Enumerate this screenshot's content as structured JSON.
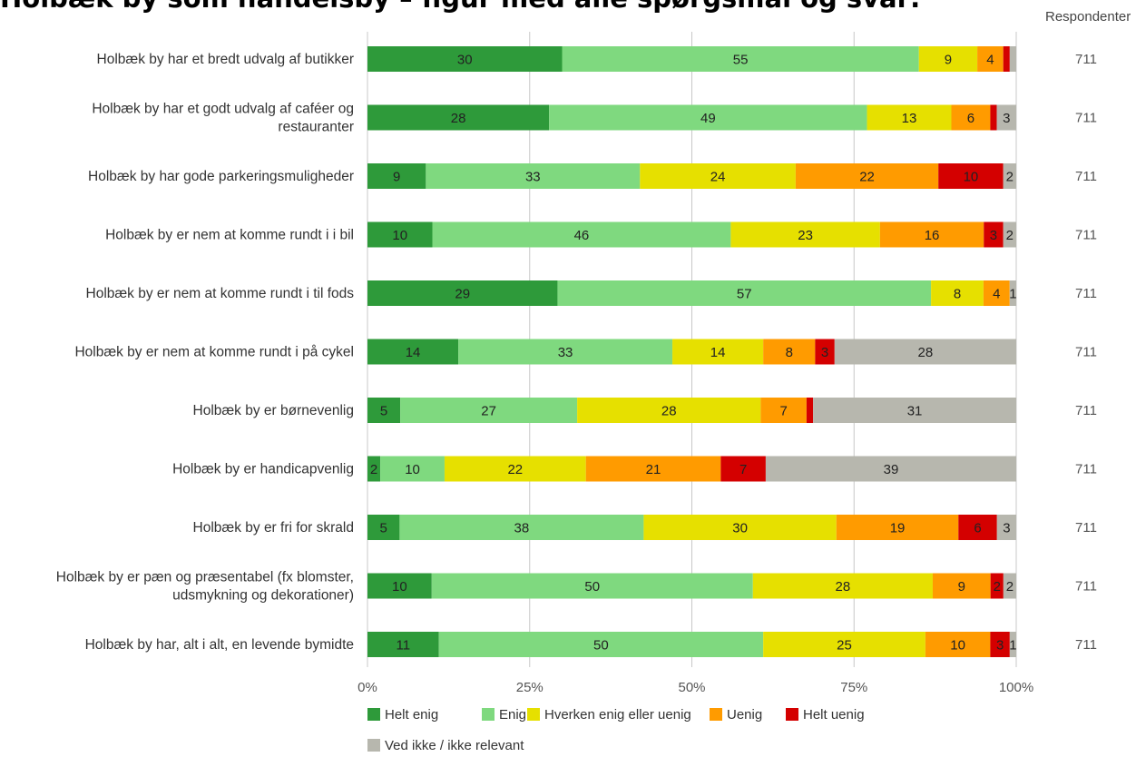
{
  "chart_data": {
    "type": "bar",
    "orientation": "horizontal-stacked-percent",
    "title": "Holbæk by som handelsby – figur med alle spørgsmål og svar:",
    "right_column_header": "Respondenter",
    "categories": [
      "Holbæk by har et bredt udvalg af butikker",
      "Holbæk by har et godt udvalg af caféer og restauranter",
      "Holbæk by har gode parkeringsmuligheder",
      "Holbæk by er nem at komme rundt i i bil",
      "Holbæk by er nem at komme rundt i til fods",
      "Holbæk by er nem at komme rundt i på cykel",
      "Holbæk by er børnevenlig",
      "Holbæk by er handicapvenlig",
      "Holbæk by er fri for skrald",
      "Holbæk by er pæn og præsentabel (fx blomster, udsmykning og dekorationer)",
      "Holbæk by har, alt i alt, en levende bymidte"
    ],
    "respondents": [
      711,
      711,
      711,
      711,
      711,
      711,
      711,
      711,
      711,
      711,
      711
    ],
    "series": [
      {
        "name": "Helt enig",
        "color": "#2e9a3a",
        "values": [
          30,
          28,
          9,
          10,
          29,
          14,
          5,
          2,
          5,
          10,
          11
        ]
      },
      {
        "name": "Enig",
        "color": "#7fd97f",
        "values": [
          55,
          49,
          33,
          46,
          57,
          33,
          27,
          10,
          38,
          50,
          50
        ]
      },
      {
        "name": "Hverken enig eller uenig",
        "color": "#e6e000",
        "values": [
          9,
          13,
          24,
          23,
          8,
          14,
          28,
          22,
          30,
          28,
          25
        ]
      },
      {
        "name": "Uenig",
        "color": "#ff9b00",
        "values": [
          4,
          6,
          22,
          16,
          4,
          8,
          7,
          21,
          19,
          9,
          10
        ]
      },
      {
        "name": "Helt uenig",
        "color": "#d40000",
        "values": [
          1,
          1,
          10,
          3,
          0,
          3,
          1,
          7,
          6,
          2,
          3
        ]
      },
      {
        "name": "Ved ikke / ikke relevant",
        "color": "#b7b7ae",
        "values": [
          1,
          3,
          2,
          2,
          1,
          28,
          31,
          39,
          3,
          2,
          1
        ]
      }
    ],
    "hidden_labels": [
      [
        false,
        false,
        false,
        false,
        true,
        true
      ],
      [
        false,
        false,
        false,
        false,
        true,
        false
      ],
      [
        false,
        false,
        false,
        false,
        false,
        false
      ],
      [
        false,
        false,
        false,
        false,
        false,
        false
      ],
      [
        false,
        false,
        false,
        false,
        true,
        false
      ],
      [
        false,
        false,
        false,
        false,
        false,
        false
      ],
      [
        false,
        false,
        false,
        false,
        true,
        false
      ],
      [
        false,
        false,
        false,
        false,
        false,
        false
      ],
      [
        false,
        false,
        false,
        false,
        false,
        false
      ],
      [
        false,
        false,
        false,
        false,
        false,
        false
      ],
      [
        false,
        false,
        false,
        false,
        false,
        false
      ]
    ],
    "xlim": [
      0,
      100
    ],
    "xticks": [
      "0%",
      "25%",
      "50%",
      "75%",
      "100%"
    ],
    "grid": true,
    "legend_position": "bottom"
  }
}
